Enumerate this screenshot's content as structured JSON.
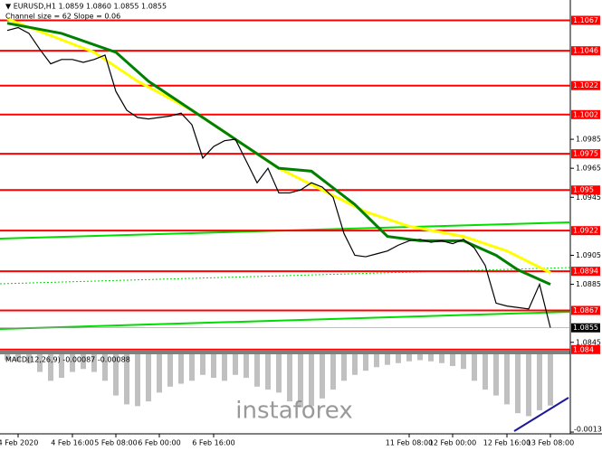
{
  "chart_data": {
    "type": "line",
    "header": "▼ EURUSD,H1  1.0859 1.0860 1.0855 1.0855",
    "indicator_label": "Channel size = 62 Slope = 0.06",
    "watermark": "instaforex",
    "color": "#000000",
    "values": [
      1.106,
      1.1062,
      1.1058,
      1.1047,
      1.1037,
      1.104,
      1.104,
      1.1038,
      1.104,
      1.1043,
      1.1018,
      1.1005,
      1.1,
      1.0999,
      1.1,
      1.1001,
      1.1003,
      1.0995,
      1.0972,
      1.098,
      1.0984,
      1.0985,
      1.097,
      1.0955,
      1.0965,
      1.0948,
      1.0948,
      1.095,
      1.0955,
      1.0952,
      1.0945,
      1.092,
      1.0905,
      1.0904,
      1.0906,
      1.0908,
      1.0912,
      1.0915,
      1.0916,
      1.0914,
      1.0915,
      1.0913,
      1.0916,
      1.091,
      1.0898,
      1.0872,
      1.087,
      1.0869,
      1.0868,
      1.0885,
      1.0855
    ],
    "overlays": [
      {
        "color": "#ffff00",
        "x": [
          0,
          8,
          12,
          17,
          21,
          25,
          29,
          33,
          37,
          42,
          46,
          50
        ],
        "values": [
          1.1068,
          1.1045,
          1.1025,
          1.1005,
          1.0985,
          1.0965,
          1.095,
          1.0935,
          1.0925,
          1.0918,
          1.0908,
          1.0893
        ]
      },
      {
        "color": "#008000",
        "x": [
          0,
          5,
          10,
          13,
          17,
          21,
          25,
          28,
          32,
          35,
          38,
          42,
          45,
          47,
          50
        ],
        "values": [
          1.1065,
          1.1058,
          1.1045,
          1.1025,
          1.1005,
          1.0985,
          1.0965,
          1.0963,
          1.094,
          1.0918,
          1.0915,
          1.0915,
          1.0905,
          1.0895,
          1.0885
        ]
      }
    ],
    "ylim": [
      1.0838,
      1.1081
    ],
    "yticks": [
      1.0985,
      1.0965,
      1.0945,
      1.0905,
      1.0885,
      1.0845
    ],
    "levels": [
      1.1067,
      1.1046,
      1.1022,
      1.1002,
      1.0975,
      1.095,
      1.0922,
      1.0894,
      1.0867,
      1.084
    ],
    "level_color": "#ff0000",
    "current_price": 1.0855,
    "xlim": [
      0,
      50
    ],
    "xticks": [
      {
        "value": 1,
        "label": "4 Feb 2020"
      },
      {
        "value": 6,
        "label": "4 Feb 16:00"
      },
      {
        "value": 10,
        "label": "5 Feb 08:00"
      },
      {
        "value": 14,
        "label": "6 Feb 00:00"
      },
      {
        "value": 19,
        "label": "6 Feb 16:00"
      },
      {
        "value": 37,
        "label": "11 Feb 08:00"
      },
      {
        "value": 41,
        "label": "12 Feb 00:00"
      },
      {
        "value": 46,
        "label": "12 Feb 16:00"
      },
      {
        "value": 50,
        "label": "13 Feb 08:00"
      }
    ],
    "macd": {
      "label": "MACD(12,26,9) -0.00087 -0.00088",
      "color": "#c0c0c0",
      "values": [
        -0.0001,
        -0.00012,
        -0.00015,
        -0.0003,
        -0.00045,
        -0.0004,
        -0.0003,
        -0.00025,
        -0.0003,
        -0.00045,
        -0.0007,
        -0.00085,
        -0.00088,
        -0.0008,
        -0.00065,
        -0.00055,
        -0.0005,
        -0.00045,
        -0.00035,
        -0.0004,
        -0.00045,
        -0.00035,
        -0.0004,
        -0.00055,
        -0.0006,
        -0.00065,
        -0.0008,
        -0.0009,
        -0.00088,
        -0.00075,
        -0.0006,
        -0.00045,
        -0.00035,
        -0.00028,
        -0.00022,
        -0.00018,
        -0.00015,
        -0.00012,
        -0.0001,
        -0.00012,
        -0.00015,
        -0.0002,
        -0.00025,
        -0.00045,
        -0.0006,
        -0.0007,
        -0.00085,
        -0.001,
        -0.00105,
        -0.00095,
        -0.00087
      ],
      "ylim": [
        -0.00135,
        3e-05
      ],
      "yticks": [
        -0.00132
      ]
    }
  }
}
